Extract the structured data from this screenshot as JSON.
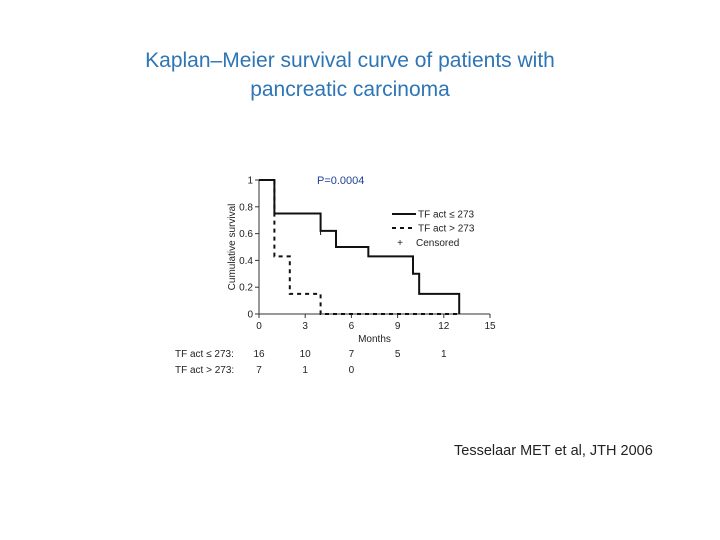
{
  "slide": {
    "title_line1": "Kaplan–Meier survival curve of patients with",
    "title_line2": "pancreatic carcinoma",
    "citation": "Tesselaar MET et al, JTH 2006"
  },
  "chart_data": {
    "type": "line",
    "subtype": "kaplan-meier step curve",
    "title": "",
    "xlabel": "Months",
    "ylabel": "Cumulative survival",
    "xlim": [
      0,
      15
    ],
    "ylim": [
      0,
      1
    ],
    "x_ticks": [
      0,
      3,
      6,
      9,
      12,
      15
    ],
    "y_ticks": [
      0,
      0.2,
      0.4,
      0.6,
      0.8,
      1
    ],
    "y_tick_labels": [
      "0",
      "0.2",
      "0.4",
      "0.6",
      "0.8",
      "1"
    ],
    "annotation": "P=0.0004",
    "legend_position": "top-right",
    "series": [
      {
        "name": "TF act ≤ 273",
        "style": "solid",
        "steps": [
          [
            0,
            1.0
          ],
          [
            1,
            0.75
          ],
          [
            3,
            0.75
          ],
          [
            4,
            0.62
          ],
          [
            5,
            0.5
          ],
          [
            7,
            0.5
          ],
          [
            7.1,
            0.43
          ],
          [
            9,
            0.43
          ],
          [
            10,
            0.3
          ],
          [
            10.4,
            0.15
          ],
          [
            13,
            0.15
          ],
          [
            13,
            0
          ]
        ],
        "censored": [
          [
            4,
            0.62
          ]
        ]
      },
      {
        "name": "TF act > 273",
        "style": "dashed",
        "steps": [
          [
            0,
            1.0
          ],
          [
            1,
            1.0
          ],
          [
            1,
            0.43
          ],
          [
            2,
            0.43
          ],
          [
            2,
            0.15
          ],
          [
            4,
            0.15
          ],
          [
            4,
            0
          ],
          [
            13,
            0
          ]
        ],
        "censored": []
      }
    ],
    "legend_censored_symbol": "+",
    "legend_censored_label": "Censored",
    "risk_table": {
      "times": [
        0,
        3,
        6,
        9,
        12
      ],
      "rows": [
        {
          "label": "TF act ≤ 273:",
          "values": [
            "16",
            "10",
            "7",
            "5",
            "1"
          ]
        },
        {
          "label": "TF act > 273:",
          "values": [
            "7",
            "1",
            "0",
            "",
            ""
          ]
        }
      ]
    }
  }
}
